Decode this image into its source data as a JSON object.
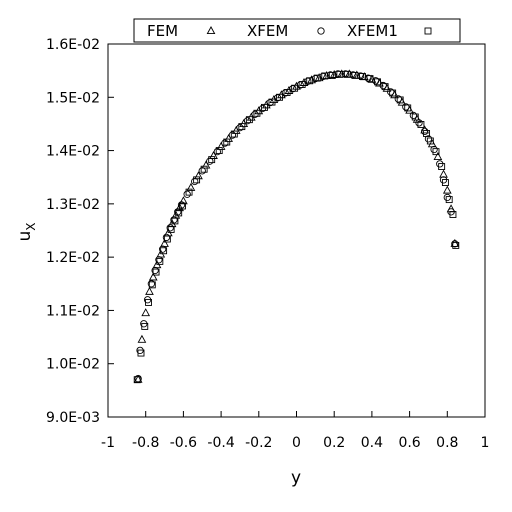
{
  "chart_data": {
    "type": "scatter",
    "xlabel": "y",
    "ylabel_main": "u",
    "ylabel_sub": "X",
    "xlim": [
      -1,
      1
    ],
    "ylim": [
      0.009,
      0.016
    ],
    "x_ticks": [
      -1,
      -0.8,
      -0.6,
      -0.4,
      -0.2,
      0,
      0.2,
      0.4,
      0.6,
      0.8,
      1
    ],
    "x_tick_labels": [
      "-1",
      "-0.8",
      "-0.6",
      "-0.4",
      "-0.2",
      "0",
      "0.2",
      "0.4",
      "0.6",
      "0.8",
      "1"
    ],
    "y_ticks": [
      0.009,
      0.01,
      0.011,
      0.012,
      0.013,
      0.014,
      0.015,
      0.016
    ],
    "y_tick_labels": [
      "9.0E-03",
      "1.0E-02",
      "1.1E-02",
      "1.2E-02",
      "1.3E-02",
      "1.4E-02",
      "1.5E-02",
      "1.6E-02"
    ],
    "grid": false,
    "legend_position": "top",
    "series": [
      {
        "name": "FEM",
        "marker": "triangle",
        "x": [
          -0.84,
          -0.82,
          -0.8,
          -0.78,
          -0.76,
          -0.74,
          -0.72,
          -0.7,
          -0.68,
          -0.66,
          -0.64,
          -0.62,
          -0.6,
          -0.56,
          -0.52,
          -0.48,
          -0.44,
          -0.4,
          -0.36,
          -0.32,
          -0.28,
          -0.24,
          -0.2,
          -0.16,
          -0.12,
          -0.08,
          -0.04,
          0,
          0.04,
          0.08,
          0.12,
          0.16,
          0.2,
          0.24,
          0.28,
          0.32,
          0.36,
          0.4,
          0.44,
          0.48,
          0.52,
          0.56,
          0.6,
          0.64,
          0.68,
          0.72,
          0.75,
          0.78,
          0.8,
          0.82,
          0.84
        ],
        "y": [
          0.0097,
          0.01045,
          0.01095,
          0.01135,
          0.01162,
          0.01185,
          0.01205,
          0.01225,
          0.01245,
          0.01262,
          0.01278,
          0.01292,
          0.01305,
          0.0133,
          0.01352,
          0.01372,
          0.0139,
          0.01407,
          0.01422,
          0.01437,
          0.0145,
          0.01462,
          0.01474,
          0.01485,
          0.01495,
          0.01504,
          0.01512,
          0.0152,
          0.01527,
          0.01532,
          0.01536,
          0.0154,
          0.01542,
          0.01543,
          0.01543,
          0.01541,
          0.01538,
          0.01533,
          0.01526,
          0.01516,
          0.01504,
          0.0149,
          0.01475,
          0.01458,
          0.01438,
          0.01412,
          0.01388,
          0.01355,
          0.01325,
          0.0129,
          0.01225
        ]
      },
      {
        "name": "XFEM",
        "marker": "circle",
        "x": [
          -0.84,
          -0.83,
          -0.81,
          -0.79,
          -0.77,
          -0.75,
          -0.73,
          -0.71,
          -0.69,
          -0.67,
          -0.65,
          -0.63,
          -0.61,
          -0.58,
          -0.54,
          -0.5,
          -0.46,
          -0.42,
          -0.38,
          -0.34,
          -0.3,
          -0.26,
          -0.22,
          -0.18,
          -0.14,
          -0.1,
          -0.06,
          -0.02,
          0.02,
          0.06,
          0.1,
          0.14,
          0.18,
          0.22,
          0.26,
          0.3,
          0.34,
          0.38,
          0.42,
          0.46,
          0.5,
          0.54,
          0.58,
          0.62,
          0.65,
          0.68,
          0.7,
          0.73,
          0.76,
          0.78,
          0.8,
          0.82,
          0.84
        ],
        "y": [
          0.00972,
          0.01025,
          0.01075,
          0.0112,
          0.0115,
          0.01175,
          0.01195,
          0.01215,
          0.01237,
          0.01255,
          0.0127,
          0.01285,
          0.01298,
          0.01318,
          0.01342,
          0.01362,
          0.0138,
          0.01398,
          0.01414,
          0.01429,
          0.01443,
          0.01456,
          0.01468,
          0.01479,
          0.0149,
          0.01499,
          0.01508,
          0.01516,
          0.01523,
          0.0153,
          0.01535,
          0.01539,
          0.01542,
          0.01544,
          0.01544,
          0.01542,
          0.0154,
          0.01536,
          0.01531,
          0.01522,
          0.0151,
          0.01497,
          0.01482,
          0.01466,
          0.01452,
          0.01436,
          0.01422,
          0.01402,
          0.01375,
          0.01345,
          0.01312,
          0.01285,
          0.01225
        ]
      },
      {
        "name": "XFEM1",
        "marker": "square",
        "x": [
          -0.845,
          -0.825,
          -0.805,
          -0.785,
          -0.765,
          -0.745,
          -0.725,
          -0.705,
          -0.685,
          -0.665,
          -0.645,
          -0.625,
          -0.605,
          -0.57,
          -0.53,
          -0.49,
          -0.45,
          -0.41,
          -0.37,
          -0.33,
          -0.29,
          -0.25,
          -0.21,
          -0.17,
          -0.13,
          -0.09,
          -0.05,
          -0.01,
          0.03,
          0.07,
          0.11,
          0.15,
          0.19,
          0.23,
          0.27,
          0.31,
          0.35,
          0.39,
          0.43,
          0.47,
          0.51,
          0.55,
          0.59,
          0.63,
          0.66,
          0.69,
          0.71,
          0.74,
          0.77,
          0.79,
          0.81,
          0.83,
          0.845
        ],
        "y": [
          0.0097,
          0.0102,
          0.0107,
          0.01115,
          0.01148,
          0.01172,
          0.01192,
          0.01212,
          0.01234,
          0.01252,
          0.01268,
          0.01283,
          0.01296,
          0.01322,
          0.01345,
          0.01365,
          0.01383,
          0.014,
          0.01416,
          0.01431,
          0.01445,
          0.01458,
          0.0147,
          0.01481,
          0.01491,
          0.015,
          0.01509,
          0.01517,
          0.01524,
          0.01531,
          0.01536,
          0.0154,
          0.01541,
          0.01543,
          0.01543,
          0.01541,
          0.01539,
          0.01535,
          0.01529,
          0.0152,
          0.01508,
          0.01495,
          0.0148,
          0.01463,
          0.01449,
          0.01432,
          0.01418,
          0.01398,
          0.0137,
          0.0134,
          0.01308,
          0.0128,
          0.01222
        ]
      }
    ]
  }
}
